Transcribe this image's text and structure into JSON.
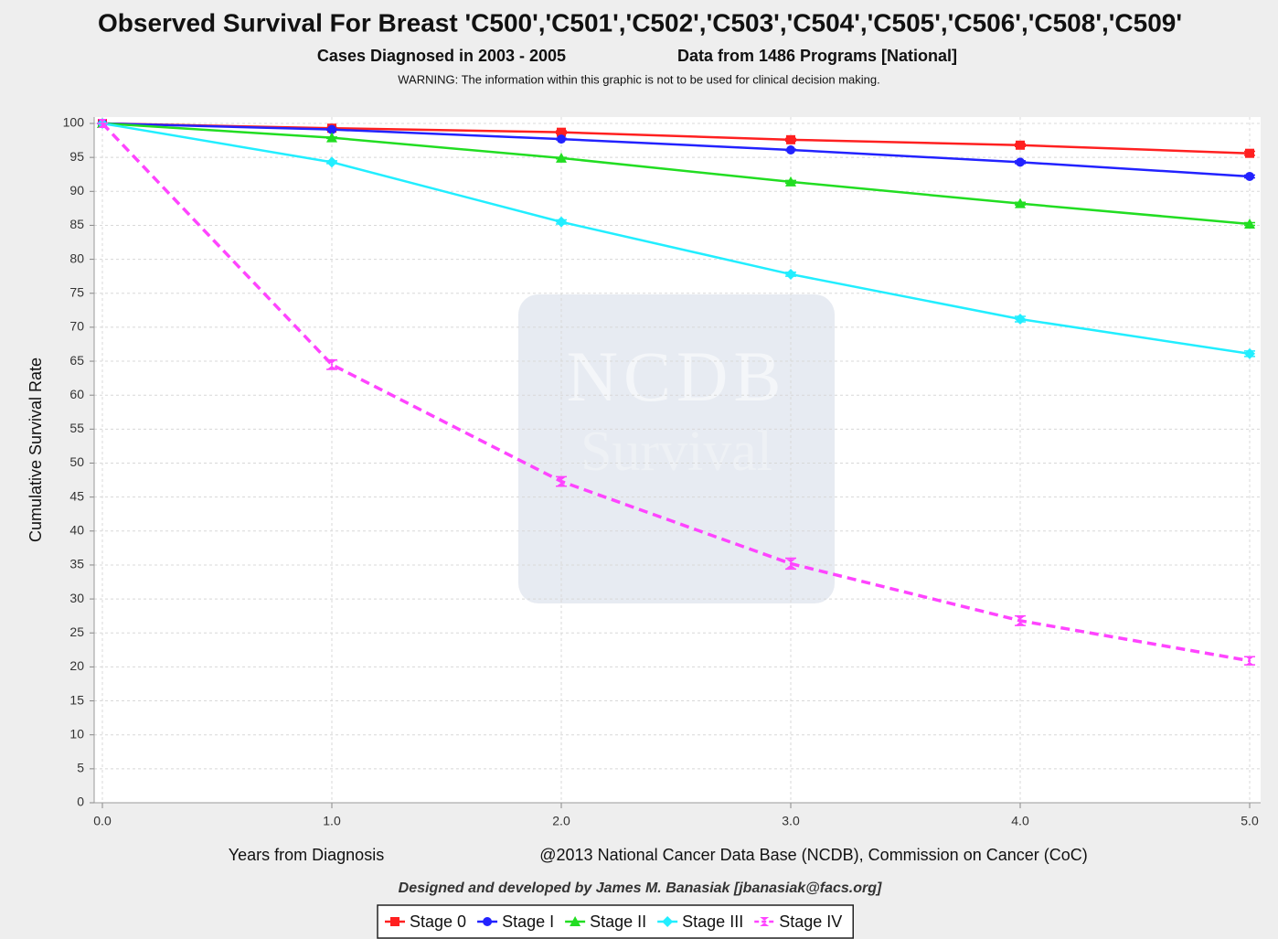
{
  "chart_data": {
    "type": "line",
    "title": "Observed Survival For Breast 'C500','C501','C502','C503','C504','C505','C506','C508','C509'",
    "subtitle": [
      "Cases Diagnosed in 2003 - 2005",
      "Data from 1486 Programs [National]"
    ],
    "warning": "WARNING: The information within this graphic is not to be used for clinical decision making.",
    "watermark": [
      "NCDB",
      "Survival"
    ],
    "ylabel": "Cumulative Survival Rate",
    "xlabel": "Years from Diagnosis",
    "copyright": "@2013  National Cancer Data Base (NCDB), Commission on Cancer (CoC)",
    "credit": "Designed and developed by James M. Banasiak [jbanasiak@facs.org]",
    "x": [
      0,
      1,
      2,
      3,
      4,
      5
    ],
    "xlim": [
      0,
      5
    ],
    "xticks": [
      {
        "value": 0,
        "label": "0.0"
      },
      {
        "value": 1,
        "label": "1.0"
      },
      {
        "value": 2,
        "label": "2.0"
      },
      {
        "value": 3,
        "label": "3.0"
      },
      {
        "value": 4,
        "label": "4.0"
      },
      {
        "value": 5,
        "label": "5.0"
      }
    ],
    "ylim": [
      0,
      100
    ],
    "yticks": [
      0,
      5,
      10,
      15,
      20,
      25,
      30,
      35,
      40,
      45,
      50,
      55,
      60,
      65,
      70,
      75,
      80,
      85,
      90,
      95,
      100
    ],
    "grid": true,
    "legend": "bottom",
    "series": [
      {
        "name": "Stage 0",
        "color": "#ff2020",
        "marker": "square",
        "values": [
          100,
          99.3,
          98.7,
          97.6,
          96.8,
          95.6
        ],
        "errors": [
          0,
          0.1,
          0.2,
          0.2,
          0.2,
          0.3
        ]
      },
      {
        "name": "Stage I",
        "color": "#2222ff",
        "marker": "circle",
        "values": [
          100,
          99.1,
          97.7,
          96.1,
          94.3,
          92.2
        ],
        "errors": [
          0,
          0.1,
          0.1,
          0.1,
          0.2,
          0.2
        ]
      },
      {
        "name": "Stage II",
        "color": "#22dd22",
        "marker": "triangle",
        "values": [
          100,
          97.9,
          94.9,
          91.4,
          88.2,
          85.2
        ],
        "errors": [
          0,
          0.1,
          0.1,
          0.2,
          0.2,
          0.2
        ]
      },
      {
        "name": "Stage III",
        "color": "#22eeff",
        "marker": "diamond",
        "values": [
          100,
          94.3,
          85.5,
          77.8,
          71.2,
          66.1
        ],
        "errors": [
          0,
          0.2,
          0.3,
          0.3,
          0.4,
          0.4
        ]
      },
      {
        "name": "Stage IV",
        "color": "#ff44ff",
        "marker": "bowtie",
        "dash": true,
        "values": [
          100,
          64.5,
          47.3,
          35.2,
          26.8,
          20.9
        ],
        "errors": [
          0,
          0.7,
          0.7,
          0.8,
          0.7,
          0.6
        ]
      }
    ]
  }
}
